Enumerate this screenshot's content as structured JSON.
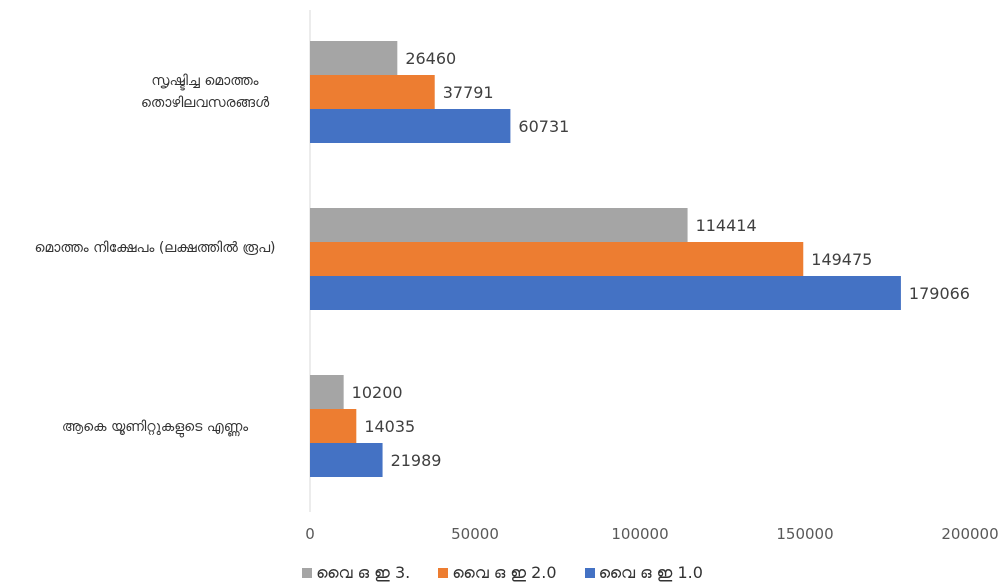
{
  "chart_data": {
    "type": "bar",
    "orientation": "horizontal",
    "categories": [
      "സൃഷ്ടിച്ച മൊത്തം തൊഴിലവസരങ്ങൾ",
      "മൊത്തം നിക്ഷേപം (ലക്ഷത്തിൽ രൂപ)",
      "ആകെ  യൂണിറ്റുകളുടെ എണ്ണം"
    ],
    "series": [
      {
        "name": "വൈ ഒ ഇ  3.",
        "color": "#a5a5a5",
        "values": [
          26460,
          114414,
          10200
        ]
      },
      {
        "name": "വൈ ഒ ഇ  2.0",
        "color": "#ed7d31",
        "values": [
          37791,
          149475,
          14035
        ]
      },
      {
        "name": "വൈ ഒ ഇ  1.0",
        "color": "#4472c4",
        "values": [
          60731,
          179066,
          21989
        ]
      }
    ],
    "xlim": [
      0,
      200000
    ],
    "xticks": [
      "0",
      "50000",
      "100000",
      "150000",
      "200000"
    ],
    "grid": false,
    "data_labels": true,
    "legend_position": "bottom"
  }
}
